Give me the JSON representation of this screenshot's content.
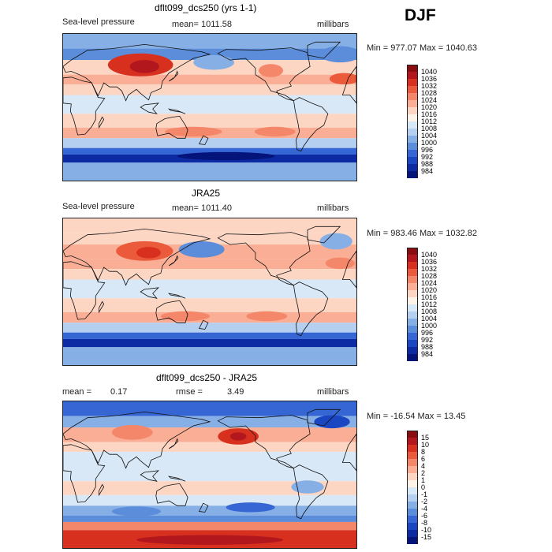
{
  "season": "DJF",
  "panels": [
    {
      "title": "dflt099_dcs250 (yrs 1-1)",
      "variable": "Sea-level pressure",
      "stat": "mean= 1011.58",
      "units": "millibars",
      "minmax": "Min = 977.07 Max = 1040.63"
    },
    {
      "title": "JRA25",
      "variable": "Sea-level pressure",
      "stat": "mean= 1011.40",
      "units": "millibars",
      "minmax": "Min = 983.46 Max = 1032.82"
    },
    {
      "title": "dflt099_dcs250 - JRA25",
      "mean_label": "mean =",
      "mean_value": "0.17",
      "rmse_label": "rmse =",
      "rmse_value": "3.49",
      "units": "millibars",
      "minmax": "Min = -16.54 Max =  13.45"
    }
  ],
  "chart_data": [
    {
      "type": "heatmap",
      "title": "dflt099_dcs250 (yrs 1-1)",
      "variable": "Sea-level pressure",
      "units": "millibars",
      "mean": 1011.58,
      "min": 977.07,
      "max": 1040.63,
      "lon_range": [
        0,
        360
      ],
      "lat_range": [
        -90,
        90
      ],
      "colorbar_levels": [
        "1040",
        "1036",
        "1032",
        "1028",
        "1024",
        "1020",
        "1016",
        "1012",
        "1008",
        "1004",
        "1000",
        "996",
        "992",
        "988",
        "984"
      ],
      "colorbar_colors": [
        "#8a0d12",
        "#b3171e",
        "#d7301f",
        "#ec5a3c",
        "#f4866a",
        "#f9ae95",
        "#fcd6c3",
        "#fff2e8",
        "#d9e8f7",
        "#b4cff0",
        "#86afe6",
        "#5b8ddb",
        "#3566d3",
        "#1a46c2",
        "#0c2aa3",
        "#05147a"
      ],
      "bands": [
        {
          "lat_from": 90,
          "lat_to": 72,
          "color": "#86afe6"
        },
        {
          "lat_from": 72,
          "lat_to": 58,
          "color": "#5b8ddb"
        },
        {
          "lat_from": 58,
          "lat_to": 40,
          "color": "#fcd6c3"
        },
        {
          "lat_from": 40,
          "lat_to": 28,
          "color": "#f9ae95"
        },
        {
          "lat_from": 28,
          "lat_to": 15,
          "color": "#fcd6c3"
        },
        {
          "lat_from": 15,
          "lat_to": -8,
          "color": "#d9e8f7"
        },
        {
          "lat_from": -8,
          "lat_to": -25,
          "color": "#fcd6c3"
        },
        {
          "lat_from": -25,
          "lat_to": -38,
          "color": "#f9ae95"
        },
        {
          "lat_from": -38,
          "lat_to": -50,
          "color": "#b4cff0"
        },
        {
          "lat_from": -50,
          "lat_to": -58,
          "color": "#3566d3"
        },
        {
          "lat_from": -58,
          "lat_to": -68,
          "color": "#0c2aa3"
        },
        {
          "lat_from": -68,
          "lat_to": -90,
          "color": "#86afe6"
        }
      ],
      "features": [
        {
          "lon": 95,
          "lat": 52,
          "rlon": 40,
          "rlat": 14,
          "color": "#d7301f"
        },
        {
          "lon": 100,
          "lat": 50,
          "rlon": 18,
          "rlat": 8,
          "color": "#b3171e"
        },
        {
          "lon": 185,
          "lat": 55,
          "rlon": 25,
          "rlat": 9,
          "color": "#86afe6"
        },
        {
          "lon": 340,
          "lat": 65,
          "rlon": 25,
          "rlat": 10,
          "color": "#5b8ddb"
        },
        {
          "lon": 345,
          "lat": 35,
          "rlon": 18,
          "rlat": 7,
          "color": "#ec5a3c"
        },
        {
          "lon": 255,
          "lat": 45,
          "rlon": 15,
          "rlat": 8,
          "color": "#f4866a"
        },
        {
          "lon": 160,
          "lat": -30,
          "rlon": 35,
          "rlat": 6,
          "color": "#f4866a"
        },
        {
          "lon": 260,
          "lat": -30,
          "rlon": 25,
          "rlat": 6,
          "color": "#f4866a"
        },
        {
          "lon": 200,
          "lat": -60,
          "rlon": 60,
          "rlat": 5,
          "color": "#05147a"
        }
      ]
    },
    {
      "type": "heatmap",
      "title": "JRA25",
      "variable": "Sea-level pressure",
      "units": "millibars",
      "mean": 1011.4,
      "min": 983.46,
      "max": 1032.82,
      "lon_range": [
        0,
        360
      ],
      "lat_range": [
        -90,
        90
      ],
      "colorbar_levels": [
        "1040",
        "1036",
        "1032",
        "1028",
        "1024",
        "1020",
        "1016",
        "1012",
        "1008",
        "1004",
        "1000",
        "996",
        "992",
        "988",
        "984"
      ],
      "colorbar_colors": [
        "#8a0d12",
        "#b3171e",
        "#d7301f",
        "#ec5a3c",
        "#f4866a",
        "#f9ae95",
        "#fcd6c3",
        "#fff2e8",
        "#d9e8f7",
        "#b4cff0",
        "#86afe6",
        "#5b8ddb",
        "#3566d3",
        "#1a46c2",
        "#0c2aa3",
        "#05147a"
      ],
      "bands": [
        {
          "lat_from": 90,
          "lat_to": 72,
          "color": "#fcd6c3"
        },
        {
          "lat_from": 72,
          "lat_to": 58,
          "color": "#fcd6c3"
        },
        {
          "lat_from": 58,
          "lat_to": 40,
          "color": "#f9ae95"
        },
        {
          "lat_from": 40,
          "lat_to": 28,
          "color": "#f9ae95"
        },
        {
          "lat_from": 28,
          "lat_to": 15,
          "color": "#fcd6c3"
        },
        {
          "lat_from": 15,
          "lat_to": -8,
          "color": "#d9e8f7"
        },
        {
          "lat_from": -8,
          "lat_to": -25,
          "color": "#fcd6c3"
        },
        {
          "lat_from": -25,
          "lat_to": -38,
          "color": "#f9ae95"
        },
        {
          "lat_from": -38,
          "lat_to": -50,
          "color": "#b4cff0"
        },
        {
          "lat_from": -50,
          "lat_to": -58,
          "color": "#3566d3"
        },
        {
          "lat_from": -58,
          "lat_to": -68,
          "color": "#0c2aa3"
        },
        {
          "lat_from": -68,
          "lat_to": -90,
          "color": "#86afe6"
        }
      ],
      "features": [
        {
          "lon": 100,
          "lat": 50,
          "rlon": 35,
          "rlat": 12,
          "color": "#ec5a3c"
        },
        {
          "lon": 105,
          "lat": 48,
          "rlon": 15,
          "rlat": 7,
          "color": "#d7301f"
        },
        {
          "lon": 170,
          "lat": 52,
          "rlon": 28,
          "rlat": 10,
          "color": "#5b8ddb"
        },
        {
          "lon": 335,
          "lat": 62,
          "rlon": 20,
          "rlat": 10,
          "color": "#86afe6"
        },
        {
          "lon": 340,
          "lat": 35,
          "rlon": 18,
          "rlat": 7,
          "color": "#f4866a"
        },
        {
          "lon": 150,
          "lat": -30,
          "rlon": 30,
          "rlat": 6,
          "color": "#f4866a"
        },
        {
          "lon": 250,
          "lat": -30,
          "rlon": 25,
          "rlat": 6,
          "color": "#f4866a"
        }
      ]
    },
    {
      "type": "heatmap",
      "title": "dflt099_dcs250 - JRA25",
      "units": "millibars",
      "mean": 0.17,
      "rmse": 3.49,
      "min": -16.54,
      "max": 13.45,
      "lon_range": [
        0,
        360
      ],
      "lat_range": [
        -90,
        90
      ],
      "colorbar_levels": [
        "15",
        "10",
        "8",
        "6",
        "4",
        "2",
        "1",
        "0",
        "-1",
        "-2",
        "-4",
        "-6",
        "-8",
        "-10",
        "-15"
      ],
      "colorbar_colors": [
        "#8a0d12",
        "#b3171e",
        "#d7301f",
        "#ec5a3c",
        "#f4866a",
        "#f9ae95",
        "#fcd6c3",
        "#fff2e8",
        "#d9e8f7",
        "#b4cff0",
        "#86afe6",
        "#5b8ddb",
        "#3566d3",
        "#1a46c2",
        "#0c2aa3",
        "#05147a"
      ],
      "bands": [
        {
          "lat_from": 90,
          "lat_to": 72,
          "color": "#3566d3"
        },
        {
          "lat_from": 72,
          "lat_to": 58,
          "color": "#86afe6"
        },
        {
          "lat_from": 58,
          "lat_to": 40,
          "color": "#f9ae95"
        },
        {
          "lat_from": 40,
          "lat_to": 28,
          "color": "#fcd6c3"
        },
        {
          "lat_from": 28,
          "lat_to": 15,
          "color": "#d9e8f7"
        },
        {
          "lat_from": 15,
          "lat_to": -8,
          "color": "#d9e8f7"
        },
        {
          "lat_from": -8,
          "lat_to": -25,
          "color": "#fcd6c3"
        },
        {
          "lat_from": -25,
          "lat_to": -38,
          "color": "#d9e8f7"
        },
        {
          "lat_from": -38,
          "lat_to": -50,
          "color": "#86afe6"
        },
        {
          "lat_from": -50,
          "lat_to": -58,
          "color": "#5b8ddb"
        },
        {
          "lat_from": -58,
          "lat_to": -68,
          "color": "#f4866a"
        },
        {
          "lat_from": -68,
          "lat_to": -90,
          "color": "#d7301f"
        }
      ],
      "features": [
        {
          "lon": 215,
          "lat": 47,
          "rlon": 25,
          "rlat": 10,
          "color": "#d7301f"
        },
        {
          "lon": 215,
          "lat": 47,
          "rlon": 10,
          "rlat": 5,
          "color": "#b3171e"
        },
        {
          "lon": 85,
          "lat": 52,
          "rlon": 25,
          "rlat": 9,
          "color": "#f4866a"
        },
        {
          "lon": 330,
          "lat": 65,
          "rlon": 22,
          "rlat": 8,
          "color": "#1a46c2"
        },
        {
          "lon": 230,
          "lat": -40,
          "rlon": 30,
          "rlat": 6,
          "color": "#3566d3"
        },
        {
          "lon": 300,
          "lat": -15,
          "rlon": 20,
          "rlat": 8,
          "color": "#86afe6"
        },
        {
          "lon": 90,
          "lat": -45,
          "rlon": 30,
          "rlat": 6,
          "color": "#5b8ddb"
        },
        {
          "lon": 180,
          "lat": -80,
          "rlon": 90,
          "rlat": 6,
          "color": "#b3171e"
        }
      ]
    }
  ]
}
